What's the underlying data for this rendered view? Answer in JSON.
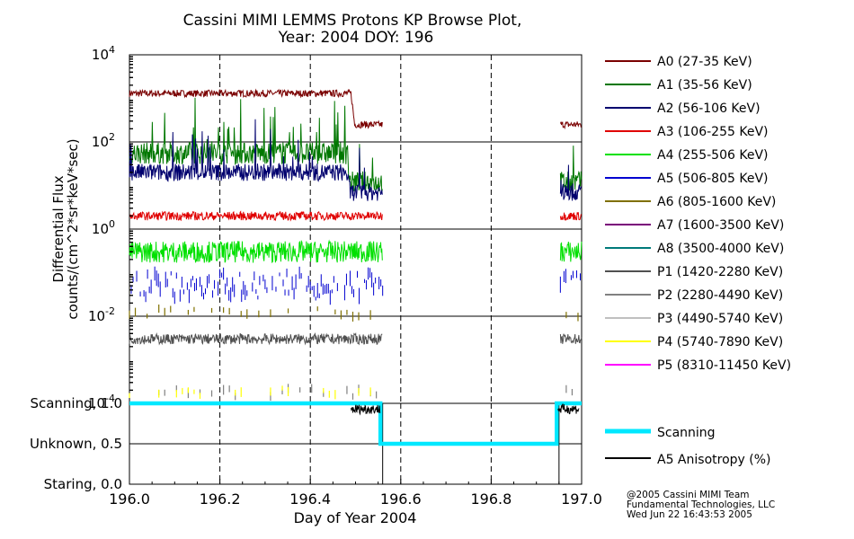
{
  "chart_data": {
    "type": "line",
    "title": "Cassini MIMI LEMMS Protons KP Browse Plot,",
    "subtitle": "Year: 2004 DOY: 196",
    "xlabel": "Day of Year 2004",
    "xlim": [
      196.0,
      197.0
    ],
    "x_ticks": [
      "196.0",
      "196.2",
      "196.4",
      "196.6",
      "196.8",
      "197.0"
    ],
    "upper_panel": {
      "ylabel_line1": "Differential Flux",
      "ylabel_line2": "counts/(cm^2*sr*keV*sec)",
      "yscale": "log",
      "ylim": [
        0.0001,
        10000
      ],
      "y_ticks": [
        {
          "base": "10",
          "exp": "4",
          "value": 10000
        },
        {
          "base": "10",
          "exp": "2",
          "value": 100
        },
        {
          "base": "10",
          "exp": "0",
          "value": 1
        },
        {
          "base": "10",
          "exp": "-2",
          "value": 0.01
        },
        {
          "base": "10",
          "exp": "-4",
          "value": 0.0001
        }
      ],
      "data_gap": [
        196.56,
        196.95
      ],
      "series": [
        {
          "name": "A0 (27-35 KeV)",
          "color": "#7a0000",
          "level": 1300,
          "level_late": 250,
          "drop_at": 196.49,
          "noise": 0.08,
          "style": "line"
        },
        {
          "name": "A1 (35-56 KeV)",
          "color": "#007700",
          "level": 55,
          "level_late": 12,
          "drop_at": 196.48,
          "noise": 0.25,
          "style": "line",
          "spikes": true
        },
        {
          "name": "A2 (56-106 KeV)",
          "color": "#00006e",
          "level": 20,
          "level_late": 7,
          "drop_at": 196.48,
          "noise": 0.2,
          "style": "line",
          "spikes": true
        },
        {
          "name": "A3 (106-255 KeV)",
          "color": "#e00000",
          "level": 2.0,
          "level_late": 2.0,
          "drop_at": 197.0,
          "noise": 0.1,
          "style": "line"
        },
        {
          "name": "A4 (255-506 KeV)",
          "color": "#00e000",
          "level": 0.3,
          "level_late": 0.35,
          "drop_at": 197.0,
          "noise": 0.25,
          "style": "line"
        },
        {
          "name": "A5 (506-805 KeV)",
          "color": "#0000d0",
          "level": 0.05,
          "level_late": 0.05,
          "drop_at": 197.0,
          "noise": 0.3,
          "style": "ticks"
        },
        {
          "name": "A6 (805-1600 KeV)",
          "color": "#807000",
          "level": 0.012,
          "level_late": 0.012,
          "drop_at": 197.0,
          "noise": 0.1,
          "style": "sparse"
        },
        {
          "name": "A7 (1600-3500 KeV)",
          "color": "#7a007a",
          "style": "none"
        },
        {
          "name": "A8 (3500-4000 KeV)",
          "color": "#007a7a",
          "style": "none"
        },
        {
          "name": "P1 (1420-2280 KeV)",
          "color": "#505050",
          "level": 0.003,
          "level_late": 0.003,
          "drop_at": 197.0,
          "noise": 0.12,
          "style": "line"
        },
        {
          "name": "P2 (2280-4490 KeV)",
          "color": "#808080",
          "level": 0.00018,
          "level_late": 0.00018,
          "drop_at": 197.0,
          "noise": 0.1,
          "style": "sparse"
        },
        {
          "name": "P3 (4490-5740 KeV)",
          "color": "#c0c0c0",
          "style": "none"
        },
        {
          "name": "P4 (5740-7890 KeV)",
          "color": "#ffff00",
          "level": 0.00018,
          "level_late": 0.00018,
          "drop_at": 197.0,
          "noise": 0.1,
          "style": "sparse"
        },
        {
          "name": "P5 (8310-11450 KeV)",
          "color": "#ff00ff",
          "style": "none"
        }
      ]
    },
    "lower_panel": {
      "ylim": [
        0.0,
        1.0
      ],
      "y_ticks": [
        {
          "label": "Scanning, 1.0",
          "value": 1.0
        },
        {
          "label": "Unknown, 0.5",
          "value": 0.5
        },
        {
          "label": "Staring, 0.0",
          "value": 0.0
        }
      ],
      "series": [
        {
          "name": "Scanning",
          "color": "#00e8ff",
          "x": [
            196.0,
            196.555,
            196.555,
            196.945,
            196.945,
            197.0
          ],
          "y": [
            1.0,
            1.0,
            0.5,
            0.5,
            1.0,
            1.0
          ]
        },
        {
          "name": "A5 Anisotropy (%)",
          "color": "#000000",
          "segments": [
            [
              196.49,
              196.555
            ],
            [
              196.948,
              196.995
            ]
          ],
          "level": 0.93
        }
      ]
    },
    "credits": [
      "@2005 Cassini MIMI Team",
      "Fundamental Technologies, LLC",
      "Wed Jun 22 16:43:53 2005"
    ]
  }
}
